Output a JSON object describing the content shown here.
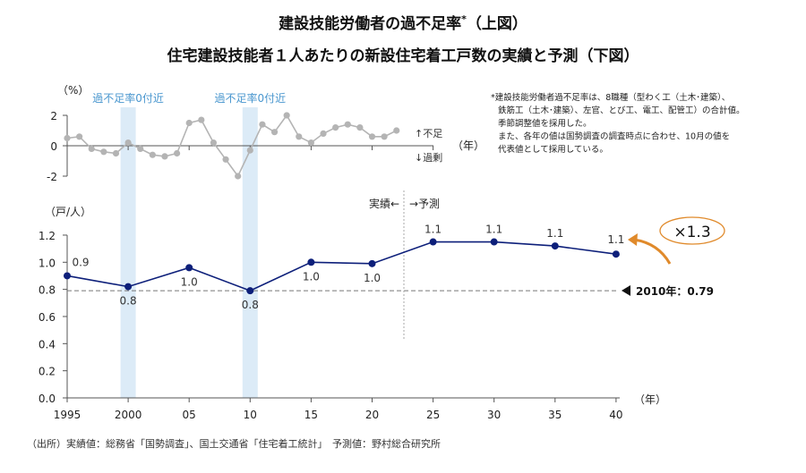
{
  "title_line1": "建設技能労働者の過不足率",
  "title_asterisk": "*",
  "title_line1_suffix": "（上図）",
  "title_line2": "住宅建設技能者１人あたりの新設住宅着工戸数の実績と予測（下図）",
  "footnote": [
    "*建設技能労働者過不足率は、8職種（型わく工（土木･建築）、",
    "鉄筋工（土木･建築）、左官、とび工、電工、配管工）の合計値。",
    "季節調整値を採用した。",
    "また、各年の値は国勢調査の調査時点に合わせ、10月の値を",
    "代表値として採用している。"
  ],
  "source": "（出所）実績値：総務省「国勢調査」、国土交通省「住宅着工統計」　予測値：野村総合研究所",
  "colors": {
    "top_line": "#b4b4b4",
    "bottom_line": "#0d1f7a",
    "band": "#dcebf7",
    "band_text": "#4a97cf",
    "accent": "#e08a2b"
  },
  "chart_data": [
    {
      "type": "line",
      "title": "建設技能労働者の過不足率",
      "ylabel": "（%）",
      "xlabel": "（年）",
      "ylim": [
        -2,
        2
      ],
      "yticks": [
        "2",
        "0",
        "-2"
      ],
      "ytick_values": [
        2,
        0,
        -2
      ],
      "annotations": {
        "up": "↑不足",
        "down": "↓過剰"
      },
      "bands": [
        {
          "year": 2000,
          "label": "過不足率0付近"
        },
        {
          "year": 2010,
          "label": "過不足率0付近"
        }
      ],
      "x": [
        1995,
        1996,
        1997,
        1998,
        1999,
        2000,
        2001,
        2002,
        2003,
        2004,
        2005,
        2006,
        2007,
        2008,
        2009,
        2010,
        2011,
        2012,
        2013,
        2014,
        2015,
        2016,
        2017,
        2018,
        2019,
        2020,
        2021,
        2022
      ],
      "values": [
        0.5,
        0.6,
        -0.2,
        -0.4,
        -0.5,
        0.2,
        -0.2,
        -0.6,
        -0.7,
        -0.5,
        1.5,
        1.7,
        0.2,
        -0.9,
        -2.0,
        -0.3,
        1.4,
        0.9,
        2.0,
        0.6,
        0.2,
        0.8,
        1.2,
        1.4,
        1.2,
        0.6,
        0.6,
        1.0
      ]
    },
    {
      "type": "line",
      "title": "住宅建設技能者１人あたりの新設住宅着工戸数",
      "ylabel": "（戸/人）",
      "xlabel": "（年）",
      "ylim": [
        0,
        1.2
      ],
      "yticks": [
        "0.0",
        "0.2",
        "0.4",
        "0.6",
        "0.8",
        "1.0",
        "1.2"
      ],
      "xticks": [
        "1995",
        "2000",
        "05",
        "10",
        "15",
        "20",
        "25",
        "30",
        "35",
        "40"
      ],
      "x": [
        1995,
        2000,
        2005,
        2010,
        2015,
        2020,
        2025,
        2030,
        2035,
        2040
      ],
      "values": [
        0.9,
        0.82,
        0.96,
        0.79,
        1.0,
        0.99,
        1.15,
        1.15,
        1.12,
        1.06
      ],
      "data_labels": [
        "0.9",
        "0.8",
        "1.0",
        "0.8",
        "1.0",
        "1.0",
        "1.1",
        "1.1",
        "1.1",
        "1.1"
      ],
      "label_positions": [
        "above",
        "below",
        "below",
        "below",
        "below",
        "below",
        "above",
        "above",
        "above",
        "above"
      ],
      "actual_label": "実績←",
      "forecast_label": "→予測",
      "reference": {
        "value": 0.79,
        "label": "2010年：0.79"
      },
      "multiplier": "×1.3"
    }
  ]
}
